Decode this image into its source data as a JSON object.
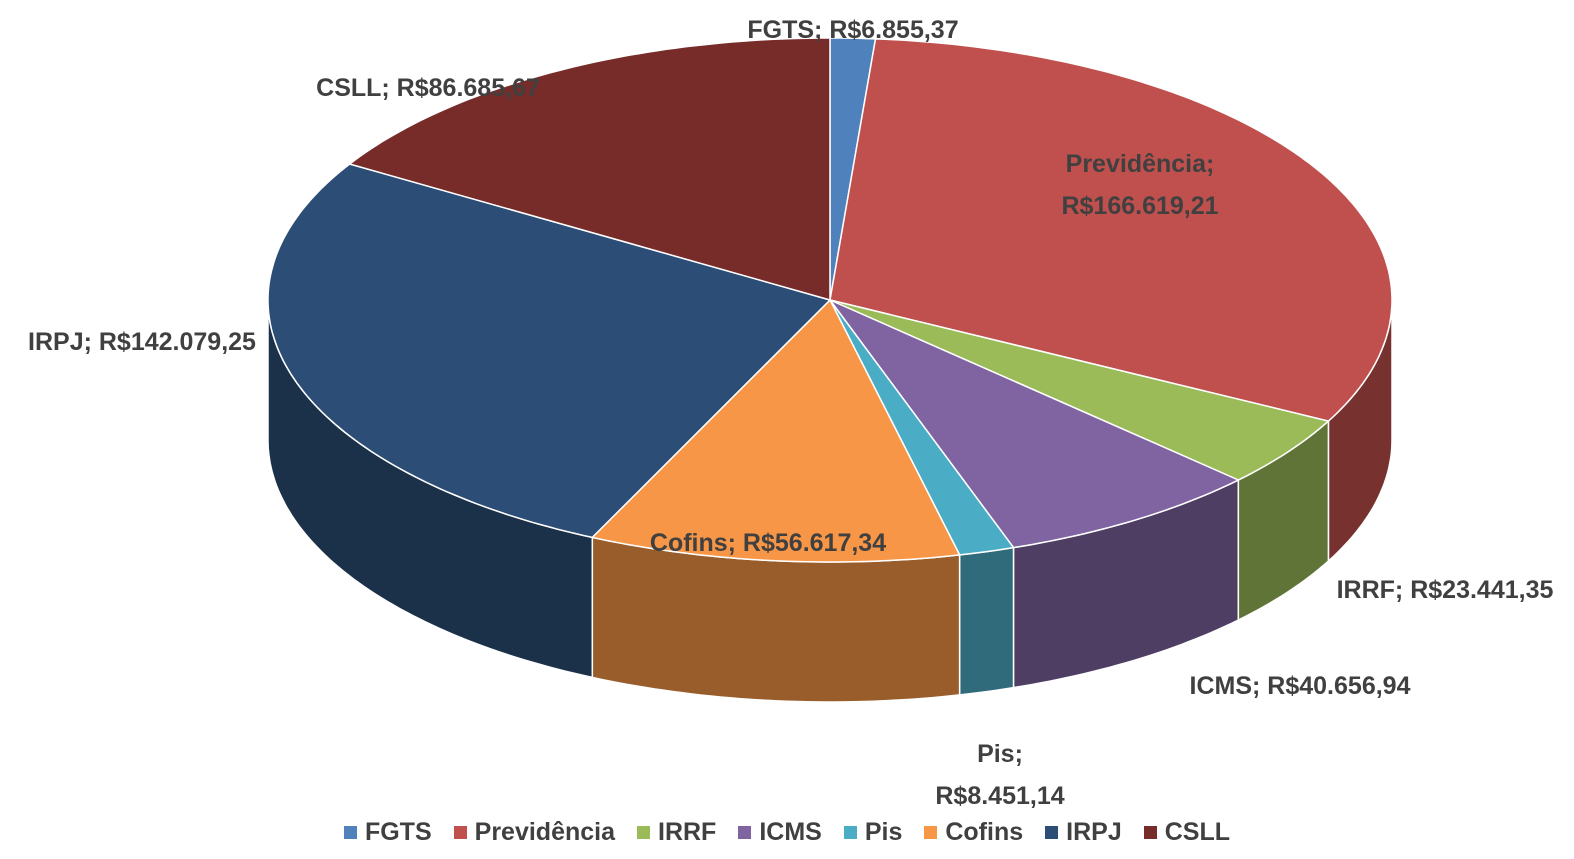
{
  "chart_data": {
    "type": "pie3d",
    "categories": [
      "FGTS",
      "Previdência",
      "IRRF",
      "ICMS",
      "Pis",
      "Cofins",
      "IRPJ",
      "CSLL"
    ],
    "values": [
      6855.37,
      166619.21,
      23441.35,
      40656.94,
      8451.14,
      56617.34,
      142079.25,
      86685.67
    ],
    "value_labels": [
      "FGTS; R$6.855,37",
      "Previdência; R$166.619,21",
      "IRRF; R$23.441,35",
      "ICMS; R$40.656,94",
      "Pis; R$8.451,14",
      "Cofins; R$56.617,34",
      "IRPJ; R$142.079,25",
      "CSLL; R$86.685,67"
    ],
    "colors": [
      "#4f81bd",
      "#c0504d",
      "#9bbb59",
      "#8064a2",
      "#4bacc6",
      "#f79646",
      "#2c4d75",
      "#772c2a"
    ],
    "legend": "bottom"
  }
}
